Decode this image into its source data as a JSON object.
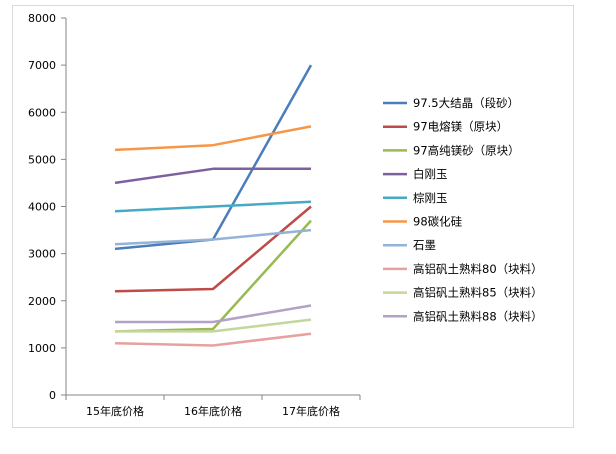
{
  "chart_data": {
    "type": "line",
    "title": "",
    "xlabel": "",
    "ylabel": "",
    "categories": [
      "15年底价格",
      "16年底价格",
      "17年底价格"
    ],
    "ylim": [
      0,
      8000
    ],
    "yticks": [
      0,
      1000,
      2000,
      3000,
      4000,
      5000,
      6000,
      7000,
      8000
    ],
    "grid": false,
    "legend_position": "right",
    "series": [
      {
        "name": "97.5大结晶（段砂）",
        "color": "#4a7ebb",
        "values": [
          3100,
          3300,
          7000
        ]
      },
      {
        "name": "97电熔镁（原块）",
        "color": "#be4b48",
        "values": [
          2200,
          2250,
          4000
        ]
      },
      {
        "name": "97高纯镁砂（原块）",
        "color": "#98b954",
        "values": [
          1350,
          1400,
          3700
        ]
      },
      {
        "name": "白刚玉",
        "color": "#7d60a0",
        "values": [
          4500,
          4800,
          4800
        ]
      },
      {
        "name": "棕刚玉",
        "color": "#46aac4",
        "values": [
          3900,
          4000,
          4100
        ]
      },
      {
        "name": "98碳化硅",
        "color": "#f79646",
        "values": [
          5200,
          5300,
          5700
        ]
      },
      {
        "name": "石墨",
        "color": "#95b3d7",
        "values": [
          3200,
          3300,
          3500
        ]
      },
      {
        "name": "高铝矾土熟料80（块料）",
        "color": "#e6a19f",
        "values": [
          1100,
          1050,
          1300
        ]
      },
      {
        "name": "高铝矾土熟料85（块料）",
        "color": "#c3d69b",
        "values": [
          1350,
          1350,
          1600
        ]
      },
      {
        "name": "高铝矾土熟料88（块料）",
        "color": "#b3a2c7",
        "values": [
          1550,
          1550,
          1900
        ]
      }
    ]
  }
}
